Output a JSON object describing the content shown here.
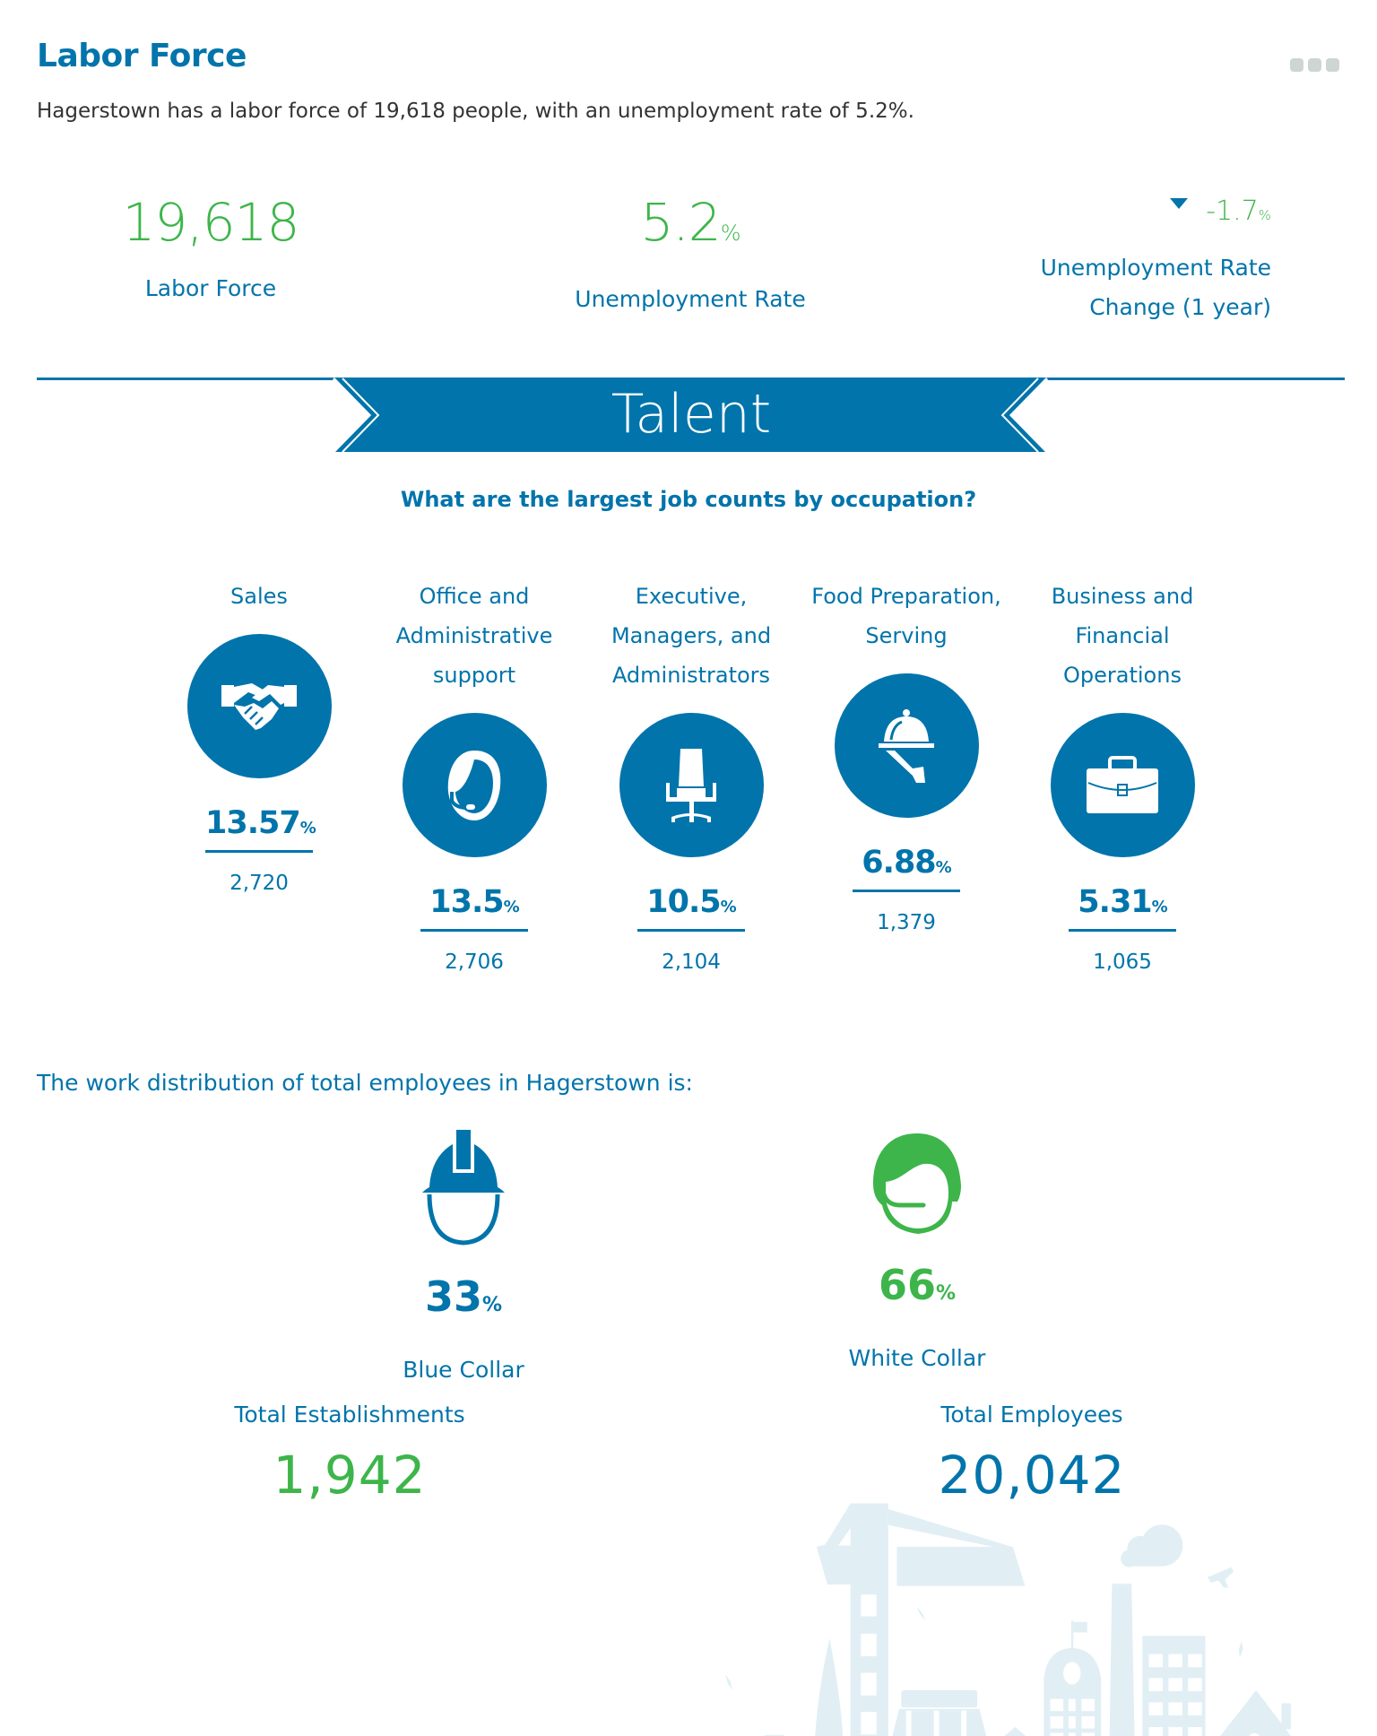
{
  "header": {
    "title": "Labor Force",
    "subtitle": "Hagerstown has a labor force of 19,618 people, with an unemployment rate of 5.2%.",
    "menu_icon": "more-dots-icon"
  },
  "stats": {
    "labor_force": {
      "value": "19,618",
      "label": "Labor Force"
    },
    "unemployment": {
      "value": "5.2",
      "suffix": "%",
      "label": "Unemployment Rate"
    },
    "change": {
      "value": "-1.7",
      "suffix": "%",
      "label_line1": "Unemployment Rate",
      "label_line2": "Change (1 year)",
      "direction": "down"
    }
  },
  "section": {
    "title": "Talent",
    "question": "What are the largest job counts by occupation?"
  },
  "occupations": [
    {
      "lines": [
        "Sales"
      ],
      "pct": "13.57",
      "suffix": "%",
      "count": "2,720",
      "icon": "handshake-icon"
    },
    {
      "lines": [
        "Office and",
        "Administrative",
        "support"
      ],
      "pct": "13.5",
      "suffix": "%",
      "count": "2,706",
      "icon": "headset-icon"
    },
    {
      "lines": [
        "Executive,",
        "Managers, and",
        "Administrators"
      ],
      "pct": "10.5",
      "suffix": "%",
      "count": "2,104",
      "icon": "office-chair-icon"
    },
    {
      "lines": [
        "Food Preparation,",
        "Serving"
      ],
      "pct": "6.88",
      "suffix": "%",
      "count": "1,379",
      "icon": "serving-cloche-icon"
    },
    {
      "lines": [
        "Business and",
        "Financial",
        "Operations"
      ],
      "pct": "5.31",
      "suffix": "%",
      "count": "1,065",
      "icon": "briefcase-icon"
    }
  ],
  "distribution": {
    "intro": "The work distribution of total employees in Hagerstown is:",
    "blue": {
      "pct": "33",
      "suffix": "%",
      "label": "Blue Collar",
      "icon": "hard-hat-icon"
    },
    "white": {
      "pct": "66",
      "suffix": "%",
      "label": "White Collar",
      "icon": "headset-person-icon"
    }
  },
  "totals": {
    "establishments": {
      "label": "Total Establishments",
      "value": "1,942"
    },
    "employees": {
      "label": "Total Employees",
      "value": "20,042"
    }
  },
  "colors": {
    "blue": "#0174ab",
    "green": "#3db54a",
    "skyline": "#e1eff5"
  }
}
